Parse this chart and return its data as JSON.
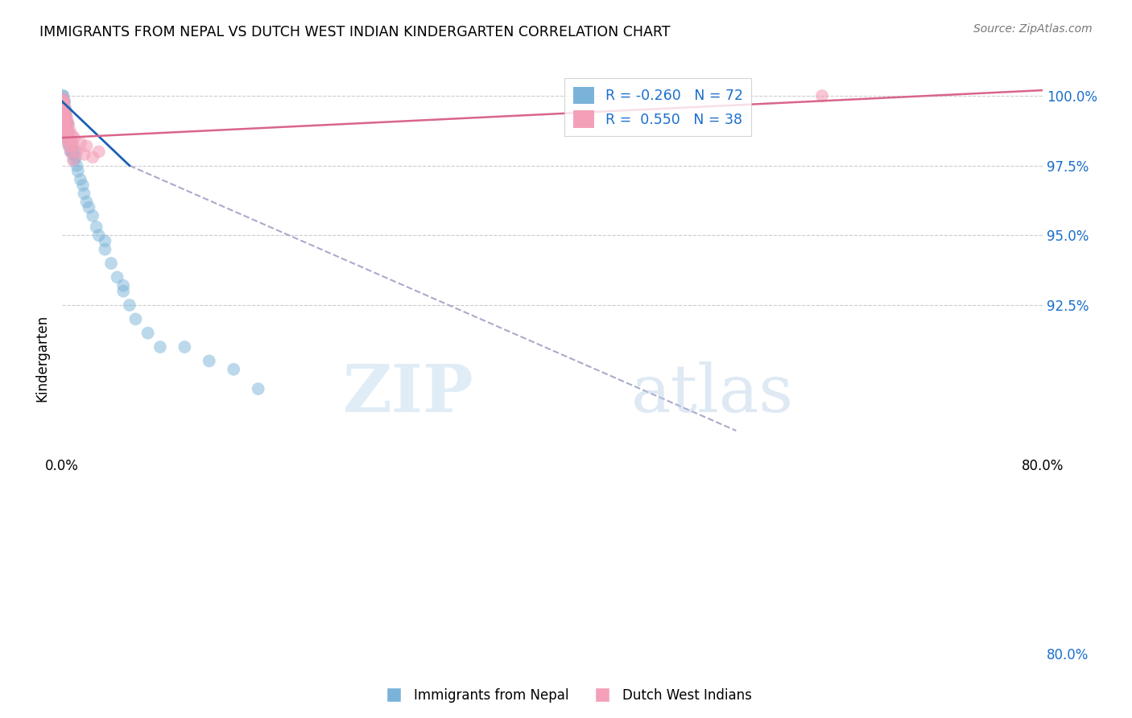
{
  "title": "IMMIGRANTS FROM NEPAL VS DUTCH WEST INDIAN KINDERGARTEN CORRELATION CHART",
  "source": "Source: ZipAtlas.com",
  "ylabel": "Kindergarten",
  "ytick_values": [
    80.0,
    92.5,
    95.0,
    97.5,
    100.0
  ],
  "xlim": [
    0.0,
    80.0
  ],
  "ylim": [
    87.5,
    101.2
  ],
  "legend_r_nepal": "-0.260",
  "legend_n_nepal": "72",
  "legend_r_dutch": "0.550",
  "legend_n_dutch": "38",
  "nepal_color": "#7ab3d9",
  "dutch_color": "#f4a0b8",
  "nepal_line_color": "#1a5fb4",
  "dutch_line_color": "#d9658a",
  "watermark_zip": "ZIP",
  "watermark_atlas": "atlas",
  "nepal_scatter_x": [
    0.05,
    0.05,
    0.05,
    0.1,
    0.1,
    0.1,
    0.1,
    0.1,
    0.15,
    0.15,
    0.15,
    0.15,
    0.15,
    0.2,
    0.2,
    0.2,
    0.2,
    0.2,
    0.2,
    0.25,
    0.25,
    0.25,
    0.25,
    0.3,
    0.3,
    0.3,
    0.3,
    0.3,
    0.35,
    0.35,
    0.35,
    0.4,
    0.4,
    0.4,
    0.5,
    0.5,
    0.5,
    0.5,
    0.6,
    0.6,
    0.7,
    0.7,
    0.8,
    0.8,
    0.9,
    1.0,
    1.0,
    1.1,
    1.2,
    1.3,
    1.5,
    1.7,
    1.8,
    2.0,
    2.2,
    2.5,
    2.8,
    3.0,
    3.5,
    3.5,
    4.0,
    4.5,
    5.0,
    5.0,
    5.5,
    6.0,
    7.0,
    8.0,
    10.0,
    12.0,
    14.0,
    16.0
  ],
  "nepal_scatter_y": [
    99.8,
    99.9,
    100.0,
    99.5,
    99.6,
    99.7,
    99.8,
    100.0,
    99.2,
    99.4,
    99.5,
    99.6,
    99.8,
    99.0,
    99.2,
    99.3,
    99.5,
    99.6,
    99.8,
    98.9,
    99.0,
    99.2,
    99.4,
    98.8,
    99.0,
    99.1,
    99.3,
    99.5,
    98.7,
    98.9,
    99.1,
    98.5,
    98.8,
    99.0,
    98.3,
    98.5,
    98.7,
    99.0,
    98.2,
    98.5,
    98.0,
    98.4,
    98.0,
    98.3,
    97.9,
    97.7,
    98.0,
    97.8,
    97.5,
    97.3,
    97.0,
    96.8,
    96.5,
    96.2,
    96.0,
    95.7,
    95.3,
    95.0,
    94.5,
    94.8,
    94.0,
    93.5,
    93.0,
    93.2,
    92.5,
    92.0,
    91.5,
    91.0,
    91.0,
    90.5,
    90.2,
    89.5
  ],
  "dutch_scatter_x": [
    0.05,
    0.08,
    0.1,
    0.1,
    0.12,
    0.15,
    0.15,
    0.2,
    0.2,
    0.25,
    0.3,
    0.3,
    0.35,
    0.4,
    0.4,
    0.5,
    0.5,
    0.6,
    0.7,
    0.8,
    0.9,
    1.0,
    1.2,
    1.5,
    1.8,
    2.0,
    2.5,
    3.0,
    0.12,
    0.18,
    0.22,
    0.28,
    0.35,
    0.45,
    0.55,
    0.7,
    0.9,
    62.0
  ],
  "dutch_scatter_y": [
    99.8,
    99.5,
    99.7,
    99.9,
    99.3,
    99.6,
    99.8,
    99.2,
    99.5,
    99.4,
    99.0,
    99.3,
    98.9,
    99.2,
    98.7,
    99.0,
    98.5,
    98.8,
    98.4,
    98.6,
    98.2,
    98.5,
    98.0,
    98.3,
    97.9,
    98.2,
    97.8,
    98.0,
    99.6,
    99.3,
    99.1,
    98.8,
    98.6,
    98.4,
    98.2,
    98.0,
    97.7,
    100.0
  ],
  "nepal_line_x0": 0.0,
  "nepal_line_y0": 99.8,
  "nepal_line_x1": 5.5,
  "nepal_line_y1": 97.5,
  "nepal_dash_x0": 5.5,
  "nepal_dash_y0": 97.5,
  "nepal_dash_x1": 55.0,
  "nepal_dash_y1": 88.0,
  "dutch_line_x0": 0.0,
  "dutch_line_y0": 98.5,
  "dutch_line_x1": 80.0,
  "dutch_line_y1": 100.2
}
